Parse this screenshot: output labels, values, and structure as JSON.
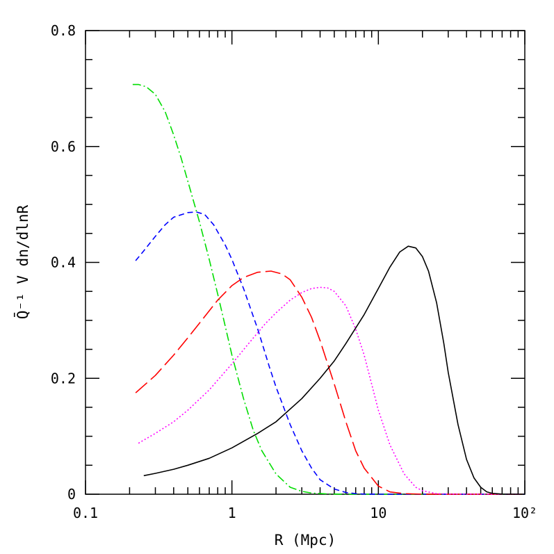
{
  "chart_data": {
    "type": "line",
    "title": "",
    "xlabel": "R (Mpc)",
    "ylabel": "Q̄⁻¹ V dn/dlnR",
    "xscale": "log",
    "xlim": [
      0.1,
      100
    ],
    "ylim": [
      0,
      0.8
    ],
    "grid": false,
    "legend": "none",
    "x_ticks": [
      {
        "value": 0.1,
        "label": "0.1"
      },
      {
        "value": 1,
        "label": "1"
      },
      {
        "value": 10,
        "label": "10"
      },
      {
        "value": 100,
        "label": "10²"
      }
    ],
    "y_ticks": [
      {
        "value": 0,
        "label": "0"
      },
      {
        "value": 0.2,
        "label": "0.2"
      },
      {
        "value": 0.4,
        "label": "0.4"
      },
      {
        "value": 0.6,
        "label": "0.6"
      },
      {
        "value": 0.8,
        "label": "0.8"
      }
    ],
    "series": [
      {
        "color": "#00dd00",
        "dash": "dot-dash",
        "x": [
          0.21,
          0.23,
          0.26,
          0.3,
          0.35,
          0.4,
          0.45,
          0.5,
          0.6,
          0.7,
          0.8,
          0.9,
          1.0,
          1.2,
          1.4,
          1.6,
          2.0,
          2.5,
          3.0,
          3.5,
          4.5,
          6,
          10,
          30,
          100
        ],
        "y": [
          0.707,
          0.707,
          0.703,
          0.69,
          0.66,
          0.62,
          0.58,
          0.54,
          0.47,
          0.405,
          0.345,
          0.29,
          0.24,
          0.165,
          0.11,
          0.075,
          0.035,
          0.012,
          0.005,
          0.002,
          0.0005,
          0,
          0,
          0,
          0
        ]
      },
      {
        "color": "#0000ff",
        "dash": "short-dash",
        "x": [
          0.22,
          0.25,
          0.3,
          0.35,
          0.4,
          0.5,
          0.57,
          0.65,
          0.75,
          0.9,
          1.0,
          1.2,
          1.5,
          1.8,
          2.0,
          2.5,
          3.0,
          3.5,
          4.0,
          5.0,
          6.0,
          7.0,
          8.0,
          10,
          30,
          100
        ],
        "y": [
          0.403,
          0.42,
          0.445,
          0.465,
          0.478,
          0.486,
          0.487,
          0.483,
          0.465,
          0.43,
          0.405,
          0.355,
          0.285,
          0.22,
          0.185,
          0.12,
          0.075,
          0.045,
          0.025,
          0.009,
          0.003,
          0.001,
          0.0003,
          0,
          0,
          0
        ]
      },
      {
        "color": "#ff0000",
        "dash": "long-dash",
        "x": [
          0.22,
          0.3,
          0.4,
          0.5,
          0.6,
          0.8,
          1.0,
          1.2,
          1.5,
          1.85,
          2.2,
          2.5,
          3.0,
          3.5,
          4.0,
          5.0,
          6.0,
          7.0,
          8.0,
          10,
          12,
          15,
          20,
          30,
          100
        ],
        "y": [
          0.175,
          0.205,
          0.24,
          0.27,
          0.295,
          0.335,
          0.36,
          0.374,
          0.383,
          0.385,
          0.38,
          0.37,
          0.34,
          0.305,
          0.265,
          0.19,
          0.125,
          0.075,
          0.045,
          0.014,
          0.004,
          0.001,
          0.0001,
          0,
          0
        ]
      },
      {
        "color": "#ff00ff",
        "dash": "dotted",
        "x": [
          0.23,
          0.3,
          0.4,
          0.5,
          0.7,
          1.0,
          1.3,
          1.7,
          2.0,
          2.5,
          3.0,
          3.5,
          4.0,
          4.5,
          5.0,
          6.0,
          7.0,
          8.0,
          9.0,
          10,
          12,
          15,
          18,
          20,
          25,
          30,
          100
        ],
        "y": [
          0.088,
          0.105,
          0.125,
          0.145,
          0.18,
          0.225,
          0.26,
          0.295,
          0.313,
          0.335,
          0.348,
          0.355,
          0.357,
          0.356,
          0.35,
          0.325,
          0.285,
          0.24,
          0.19,
          0.145,
          0.085,
          0.035,
          0.012,
          0.006,
          0.001,
          0.0002,
          0
        ]
      },
      {
        "color": "#000000",
        "dash": "solid",
        "x": [
          0.25,
          0.3,
          0.4,
          0.5,
          0.7,
          1.0,
          1.5,
          2.0,
          3.0,
          4.0,
          5.0,
          6.0,
          8.0,
          10,
          12,
          14,
          16,
          18,
          20,
          22,
          25,
          28,
          30,
          35,
          40,
          45,
          50,
          55,
          60,
          70,
          100
        ],
        "y": [
          0.032,
          0.036,
          0.043,
          0.05,
          0.062,
          0.08,
          0.105,
          0.125,
          0.165,
          0.2,
          0.23,
          0.26,
          0.31,
          0.355,
          0.392,
          0.418,
          0.428,
          0.425,
          0.41,
          0.385,
          0.33,
          0.26,
          0.21,
          0.12,
          0.06,
          0.028,
          0.012,
          0.004,
          0.0015,
          0.0002,
          0
        ]
      }
    ]
  }
}
